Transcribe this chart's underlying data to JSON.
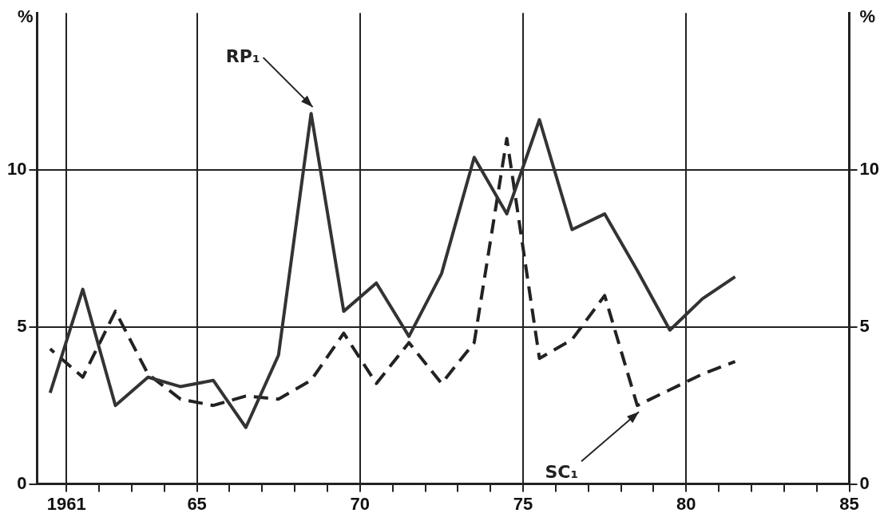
{
  "chart_data": {
    "type": "line",
    "ylabel": "%",
    "y2label": "%",
    "x": [
      1960.5,
      1961.5,
      1962.5,
      1963.5,
      1964.5,
      1965.5,
      1966.5,
      1967.5,
      1968.5,
      1969.5,
      1970.5,
      1971.5,
      1972.5,
      1973.5,
      1974.5,
      1975.5,
      1976.5,
      1977.5,
      1978.5,
      1979.5,
      1980.5,
      1981.5
    ],
    "series": [
      {
        "name": "RP₁",
        "color": "#333333",
        "line_style": "solid",
        "values": [
          2.9,
          6.2,
          2.5,
          3.4,
          3.1,
          3.3,
          1.8,
          4.1,
          11.8,
          5.5,
          6.4,
          4.7,
          6.7,
          10.4,
          8.6,
          11.6,
          8.1,
          8.6,
          6.8,
          4.9,
          5.9,
          6.6
        ]
      },
      {
        "name": "SC₁",
        "color": "#222222",
        "line_style": "dashed",
        "values": [
          4.3,
          3.4,
          5.5,
          3.5,
          2.7,
          2.5,
          2.8,
          2.7,
          3.3,
          4.8,
          3.2,
          4.5,
          3.2,
          4.5,
          11.0,
          4.0,
          4.6,
          6.0,
          2.5,
          3.0,
          3.5,
          3.9
        ]
      }
    ],
    "xlim": [
      1960.1,
      1985
    ],
    "xticks": [
      {
        "value": 1961,
        "label": "1961"
      },
      {
        "value": 1962,
        "label": null
      },
      {
        "value": 1963,
        "label": null
      },
      {
        "value": 1964,
        "label": null
      },
      {
        "value": 1965,
        "label": "65"
      },
      {
        "value": 1966,
        "label": null
      },
      {
        "value": 1967,
        "label": null
      },
      {
        "value": 1968,
        "label": null
      },
      {
        "value": 1969,
        "label": null
      },
      {
        "value": 1970,
        "label": "70"
      },
      {
        "value": 1971,
        "label": null
      },
      {
        "value": 1972,
        "label": null
      },
      {
        "value": 1973,
        "label": null
      },
      {
        "value": 1974,
        "label": null
      },
      {
        "value": 1975,
        "label": "75"
      },
      {
        "value": 1976,
        "label": null
      },
      {
        "value": 1977,
        "label": null
      },
      {
        "value": 1978,
        "label": null
      },
      {
        "value": 1979,
        "label": null
      },
      {
        "value": 1980,
        "label": "80"
      },
      {
        "value": 1981,
        "label": null
      },
      {
        "value": 1982,
        "label": null
      },
      {
        "value": 1983,
        "label": null
      },
      {
        "value": 1984,
        "label": null
      },
      {
        "value": 1985,
        "label": "85"
      }
    ],
    "ylim": [
      0,
      15
    ],
    "yticks": [
      0,
      5,
      10
    ],
    "y2lim": [
      0,
      15
    ],
    "y2ticks": [
      0,
      5,
      10
    ],
    "grid": true,
    "legend": false,
    "marker": "none"
  }
}
